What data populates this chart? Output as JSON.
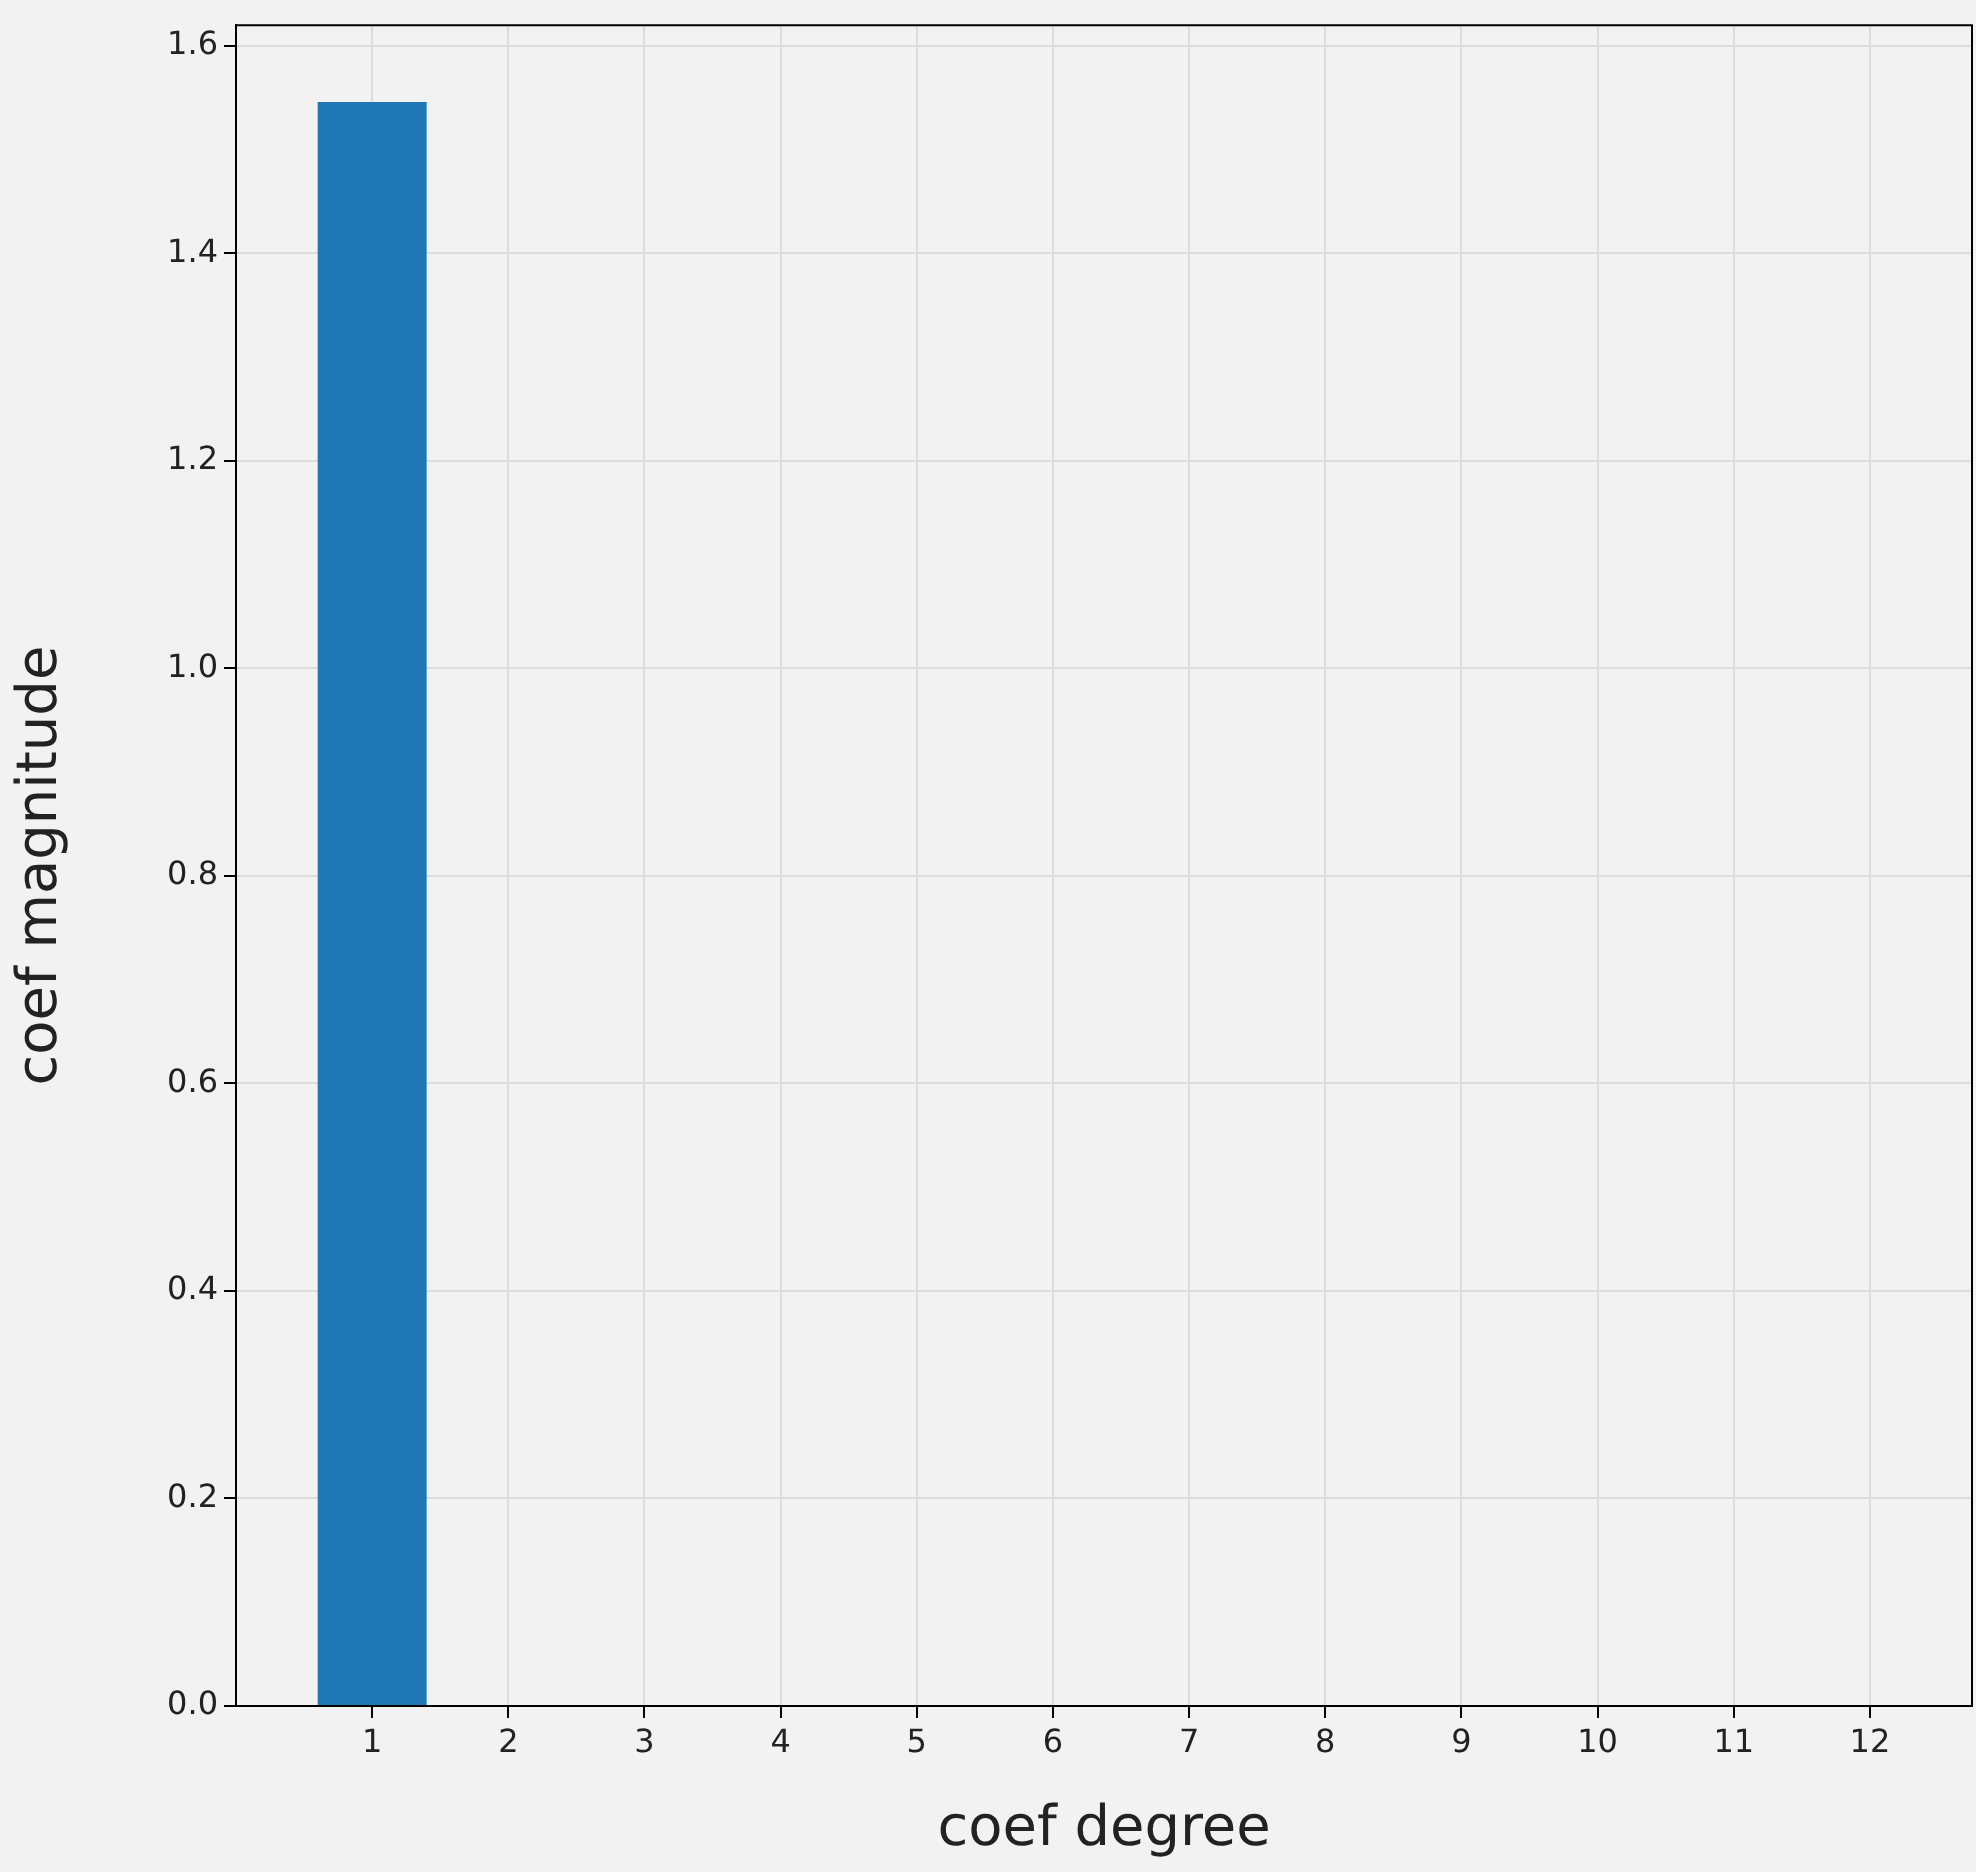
{
  "chart_data": {
    "type": "bar",
    "xlabel": "coef degree",
    "ylabel": "coef magnitude",
    "x": [
      1,
      2,
      3,
      4,
      5,
      6,
      7,
      8,
      9,
      10,
      11,
      12
    ],
    "values": [
      1.546,
      0,
      0,
      0,
      0,
      0,
      0,
      0,
      0,
      0,
      0,
      0
    ],
    "color": "#1f77b4",
    "xlim": [
      0,
      12.75
    ],
    "xticks": [
      1,
      2,
      3,
      4,
      5,
      6,
      7,
      8,
      9,
      10,
      11,
      12
    ],
    "ylim": [
      0,
      1.62
    ],
    "yticks": [
      {
        "value": 0,
        "label": "0.0"
      },
      0.2,
      0.4,
      0.6,
      0.8,
      {
        "value": 1,
        "label": "1.0"
      },
      1.2,
      1.4,
      1.6
    ],
    "grid": true,
    "legend": false
  }
}
